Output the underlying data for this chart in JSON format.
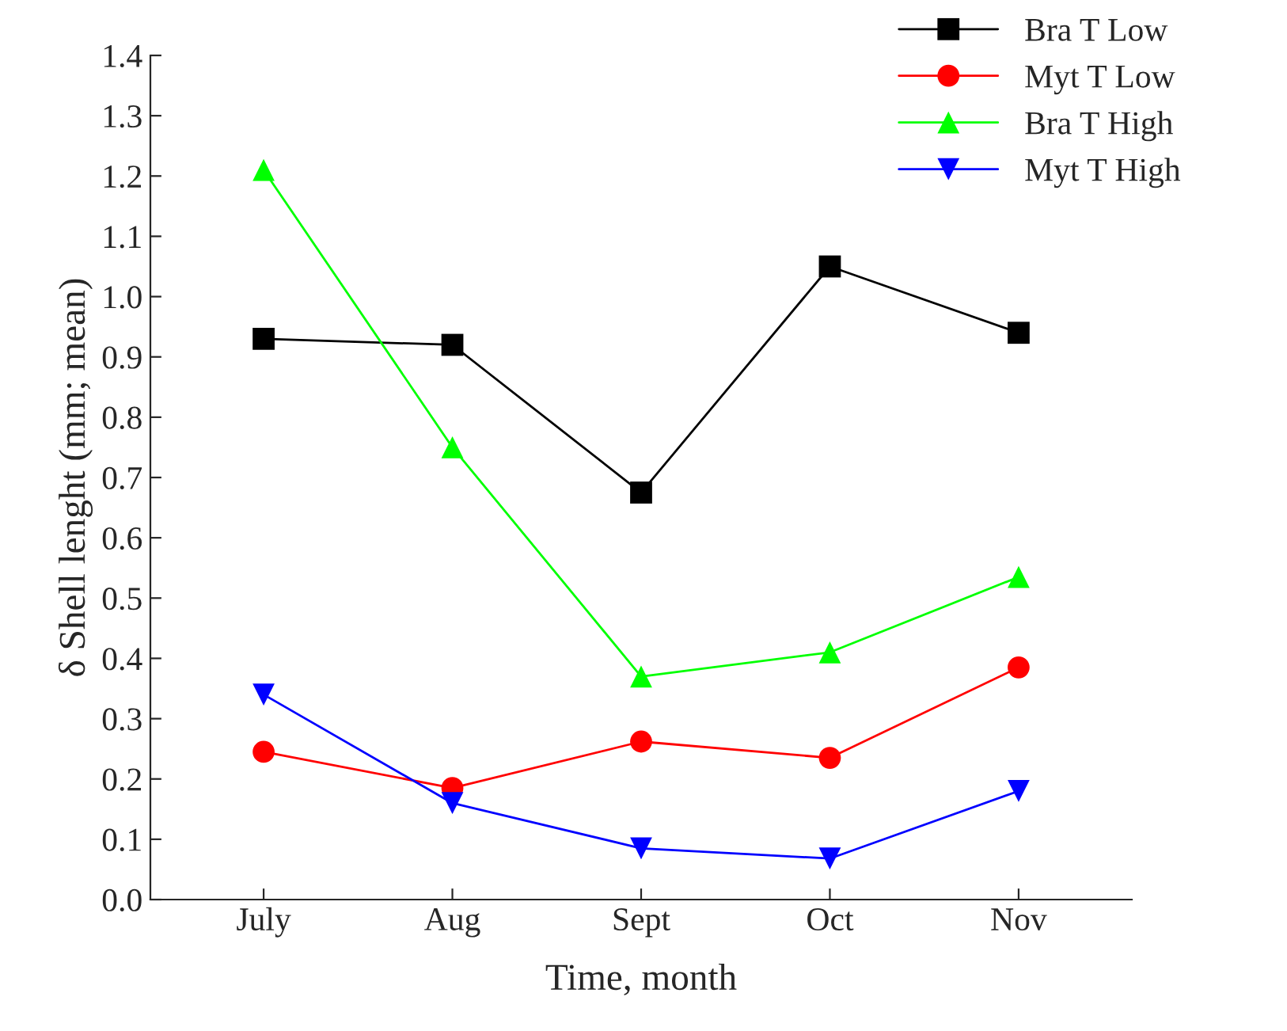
{
  "chart_data": {
    "type": "line",
    "xlabel": "Time, month",
    "ylabel": "δ Shell lenght (mm; mean)",
    "categories": [
      "July",
      "Aug",
      "Sept",
      "Oct",
      "Nov"
    ],
    "series": [
      {
        "name": "Bra T Low",
        "color": "#000000",
        "marker": "square",
        "values": [
          0.93,
          0.92,
          0.675,
          1.05,
          0.94
        ]
      },
      {
        "name": "Myt T Low",
        "color": "#ff0000",
        "marker": "circle",
        "values": [
          0.245,
          0.185,
          0.262,
          0.235,
          0.385
        ]
      },
      {
        "name": "Bra T High",
        "color": "#00ff00",
        "marker": "triangle",
        "values": [
          1.21,
          0.75,
          0.37,
          0.41,
          0.535
        ]
      },
      {
        "name": "Myt T High",
        "color": "#0000ff",
        "marker": "triangle_down",
        "values": [
          0.34,
          0.16,
          0.085,
          0.068,
          0.18
        ]
      }
    ],
    "ylim": [
      0,
      1.4
    ],
    "yticks": [
      {
        "value": 0,
        "label": "0.0"
      },
      {
        "value": 0.1,
        "label": "0.1"
      },
      {
        "value": 0.2,
        "label": "0.2"
      },
      {
        "value": 0.3,
        "label": "0.3"
      },
      {
        "value": 0.4,
        "label": "0.4"
      },
      {
        "value": 0.5,
        "label": "0.5"
      },
      {
        "value": 0.6,
        "label": "0.6"
      },
      {
        "value": 0.7,
        "label": "0.7"
      },
      {
        "value": 0.8,
        "label": "0.8"
      },
      {
        "value": 0.9,
        "label": "0.9"
      },
      {
        "value": 1.0,
        "label": "1.0"
      },
      {
        "value": 1.1,
        "label": "1.1"
      },
      {
        "value": 1.2,
        "label": "1.2"
      },
      {
        "value": 1.3,
        "label": "1.3"
      },
      {
        "value": 1.4,
        "label": "1.4"
      }
    ],
    "legend": "top right",
    "grid": false
  }
}
